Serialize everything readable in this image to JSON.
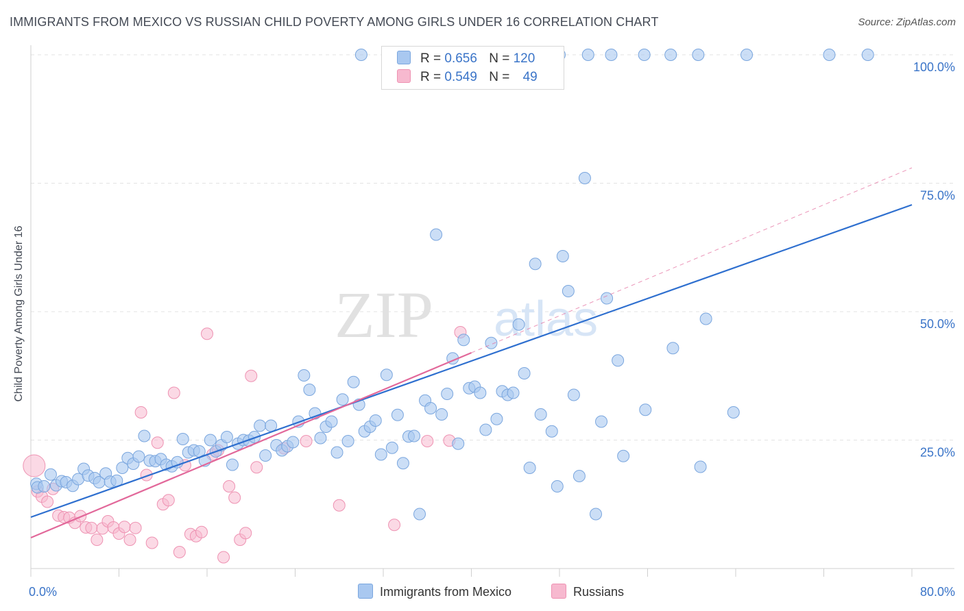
{
  "title": "IMMIGRANTS FROM MEXICO VS RUSSIAN CHILD POVERTY AMONG GIRLS UNDER 16 CORRELATION CHART",
  "source": "Source: ZipAtlas.com",
  "watermark": {
    "zip": "ZIP",
    "atlas": "atlas"
  },
  "legend": {
    "r_label": "R =",
    "n_label": "N =",
    "rows": [
      {
        "r": "0.656",
        "n": "120"
      },
      {
        "r": "0.549",
        "n": "49"
      }
    ]
  },
  "chart_data": {
    "type": "scatter",
    "title": "IMMIGRANTS FROM MEXICO VS RUSSIAN CHILD POVERTY AMONG GIRLS UNDER 16 CORRELATION CHART",
    "xlabel": "",
    "ylabel": "Child Poverty Among Girls Under 16",
    "xlim": [
      0,
      80
    ],
    "ylim": [
      0,
      102
    ],
    "x_tick_labels": [
      "0.0%",
      "80.0%"
    ],
    "y_tick_labels": [
      "25.0%",
      "50.0%",
      "75.0%",
      "100.0%"
    ],
    "y_tick_values": [
      25,
      50,
      75,
      100
    ],
    "colors": {
      "mexico_fill": "#a9c8f0",
      "mexico_stroke": "#7aa6de",
      "mexico_line": "#2e6fcf",
      "russians_fill": "#f7b9cf",
      "russians_stroke": "#ee92b2",
      "russians_line": "#e2689a",
      "tick_label": "#3a74c8",
      "grid": "#e3e3e3"
    },
    "series": [
      {
        "name": "Immigrants from Mexico",
        "points": [
          [
            0.5,
            16.5
          ],
          [
            0.6,
            15.8
          ],
          [
            1.2,
            16.0
          ],
          [
            1.8,
            18.3
          ],
          [
            2.3,
            16.2
          ],
          [
            2.8,
            17.0
          ],
          [
            3.2,
            16.8
          ],
          [
            3.8,
            16.1
          ],
          [
            4.3,
            17.4
          ],
          [
            4.8,
            19.4
          ],
          [
            5.2,
            18.1
          ],
          [
            5.8,
            17.6
          ],
          [
            6.2,
            16.8
          ],
          [
            6.8,
            18.5
          ],
          [
            7.2,
            16.9
          ],
          [
            7.8,
            17.1
          ],
          [
            8.3,
            19.6
          ],
          [
            8.8,
            21.5
          ],
          [
            9.3,
            20.4
          ],
          [
            9.8,
            21.8
          ],
          [
            10.3,
            25.8
          ],
          [
            10.8,
            21.0
          ],
          [
            11.3,
            20.9
          ],
          [
            11.8,
            21.3
          ],
          [
            12.3,
            20.2
          ],
          [
            12.8,
            19.9
          ],
          [
            13.3,
            20.7
          ],
          [
            13.8,
            25.2
          ],
          [
            14.3,
            22.6
          ],
          [
            14.8,
            23.0
          ],
          [
            15.3,
            22.8
          ],
          [
            15.8,
            21.0
          ],
          [
            16.3,
            25.0
          ],
          [
            16.8,
            22.8
          ],
          [
            17.3,
            24.0
          ],
          [
            17.8,
            25.6
          ],
          [
            18.3,
            20.2
          ],
          [
            18.8,
            24.3
          ],
          [
            19.3,
            25.0
          ],
          [
            19.8,
            24.9
          ],
          [
            20.3,
            25.6
          ],
          [
            20.8,
            27.8
          ],
          [
            21.3,
            22.0
          ],
          [
            21.8,
            27.8
          ],
          [
            22.3,
            24.0
          ],
          [
            22.8,
            23.0
          ],
          [
            23.3,
            23.8
          ],
          [
            23.8,
            24.6
          ],
          [
            24.3,
            28.6
          ],
          [
            24.8,
            37.6
          ],
          [
            25.3,
            34.8
          ],
          [
            25.8,
            30.2
          ],
          [
            26.3,
            25.4
          ],
          [
            26.8,
            27.6
          ],
          [
            27.3,
            28.6
          ],
          [
            27.8,
            22.6
          ],
          [
            28.3,
            32.9
          ],
          [
            28.8,
            24.8
          ],
          [
            29.3,
            36.3
          ],
          [
            29.8,
            31.9
          ],
          [
            30.3,
            26.7
          ],
          [
            30.8,
            27.6
          ],
          [
            31.3,
            28.8
          ],
          [
            31.8,
            22.2
          ],
          [
            32.3,
            37.7
          ],
          [
            32.8,
            23.5
          ],
          [
            33.3,
            29.9
          ],
          [
            33.8,
            20.5
          ],
          [
            34.3,
            25.7
          ],
          [
            34.8,
            25.8
          ],
          [
            35.3,
            10.6
          ],
          [
            35.8,
            32.7
          ],
          [
            36.3,
            31.2
          ],
          [
            36.8,
            65.0
          ],
          [
            37.3,
            30.0
          ],
          [
            37.8,
            34.0
          ],
          [
            38.3,
            40.9
          ],
          [
            38.8,
            24.3
          ],
          [
            39.3,
            44.5
          ],
          [
            39.8,
            35.1
          ],
          [
            40.3,
            35.4
          ],
          [
            40.8,
            34.2
          ],
          [
            41.3,
            27.0
          ],
          [
            41.8,
            43.9
          ],
          [
            42.3,
            29.1
          ],
          [
            42.8,
            34.5
          ],
          [
            43.3,
            33.8
          ],
          [
            43.8,
            34.2
          ],
          [
            44.3,
            47.5
          ],
          [
            44.8,
            38.0
          ],
          [
            45.3,
            19.6
          ],
          [
            45.8,
            59.3
          ],
          [
            46.3,
            30.0
          ],
          [
            47.3,
            26.7
          ],
          [
            47.8,
            16.0
          ],
          [
            48.3,
            60.8
          ],
          [
            48.8,
            54.0
          ],
          [
            49.3,
            33.8
          ],
          [
            49.8,
            18.0
          ],
          [
            50.3,
            76.0
          ],
          [
            51.3,
            10.6
          ],
          [
            51.8,
            28.6
          ],
          [
            52.3,
            52.6
          ],
          [
            53.3,
            40.5
          ],
          [
            53.8,
            21.9
          ],
          [
            55.8,
            30.9
          ],
          [
            58.3,
            42.9
          ],
          [
            60.8,
            19.8
          ],
          [
            61.3,
            48.6
          ],
          [
            63.8,
            30.4
          ],
          [
            48.0,
            100.0
          ],
          [
            50.6,
            100.0
          ],
          [
            52.7,
            100.0
          ],
          [
            55.7,
            100.0
          ],
          [
            58.1,
            100.0
          ],
          [
            60.6,
            100.0
          ],
          [
            65.0,
            100.0
          ],
          [
            72.5,
            100.0
          ],
          [
            76.0,
            100.0
          ],
          [
            30.0,
            100.0
          ]
        ],
        "trend": {
          "from": [
            0,
            10.0
          ],
          "to": [
            80,
            70.8
          ]
        }
      },
      {
        "name": "Russians",
        "points": [
          [
            0.3,
            20.0
          ],
          [
            0.6,
            15.0
          ],
          [
            1.0,
            14.0
          ],
          [
            1.5,
            13.0
          ],
          [
            2.0,
            15.5
          ],
          [
            2.5,
            10.3
          ],
          [
            3.0,
            10.0
          ],
          [
            3.5,
            9.9
          ],
          [
            4.0,
            8.9
          ],
          [
            4.5,
            10.2
          ],
          [
            5.0,
            8.0
          ],
          [
            5.5,
            7.9
          ],
          [
            6.0,
            5.6
          ],
          [
            6.5,
            7.8
          ],
          [
            7.0,
            9.2
          ],
          [
            7.5,
            8.0
          ],
          [
            8.0,
            6.8
          ],
          [
            8.5,
            8.1
          ],
          [
            9.0,
            5.6
          ],
          [
            9.5,
            7.9
          ],
          [
            10.0,
            30.4
          ],
          [
            10.5,
            18.2
          ],
          [
            11.0,
            5.0
          ],
          [
            11.5,
            24.5
          ],
          [
            12.0,
            12.5
          ],
          [
            12.5,
            13.3
          ],
          [
            13.0,
            34.2
          ],
          [
            13.5,
            3.2
          ],
          [
            14.0,
            20.1
          ],
          [
            14.5,
            6.7
          ],
          [
            15.0,
            6.3
          ],
          [
            15.5,
            7.1
          ],
          [
            16.0,
            45.7
          ],
          [
            16.5,
            22.2
          ],
          [
            17.0,
            23.0
          ],
          [
            17.5,
            2.2
          ],
          [
            18.0,
            16.0
          ],
          [
            18.5,
            13.8
          ],
          [
            19.0,
            5.6
          ],
          [
            19.5,
            6.9
          ],
          [
            20.0,
            37.5
          ],
          [
            20.5,
            19.7
          ],
          [
            23.0,
            23.4
          ],
          [
            25.0,
            24.8
          ],
          [
            28.0,
            12.3
          ],
          [
            33.0,
            8.5
          ],
          [
            36.0,
            24.8
          ],
          [
            38.0,
            24.9
          ],
          [
            39.0,
            46.0
          ]
        ],
        "trend": {
          "from": [
            0,
            6.0
          ],
          "to": [
            40,
            42.0
          ]
        },
        "trend_extension": {
          "from": [
            40,
            42.0
          ],
          "to": [
            80,
            78.0
          ]
        }
      }
    ]
  },
  "bottom_legend": [
    {
      "label": "Immigrants from Mexico"
    },
    {
      "label": "Russians"
    }
  ]
}
